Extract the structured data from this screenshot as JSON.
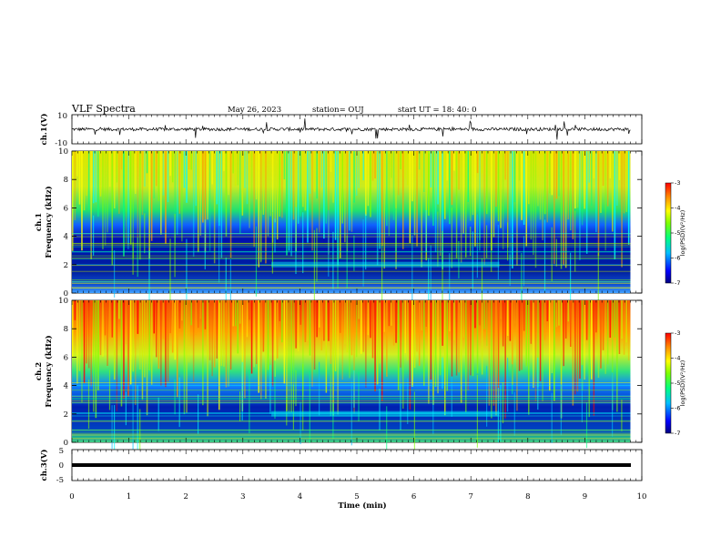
{
  "header": {
    "title": "VLF Spectra",
    "date": "May 26, 2023",
    "station": "station= OUJ",
    "start": "start  UT =   18: 40: 0"
  },
  "chart_data": [
    {
      "type": "line",
      "panel": "ch1-waveform",
      "ylabel": "ch.1(V)",
      "yticks": [
        "10",
        "-10"
      ],
      "ylim": [
        -10,
        10
      ],
      "xlim": [
        0,
        10
      ],
      "baseline": 0,
      "color": "#000000"
    },
    {
      "type": "heatmap",
      "panel": "ch1-spectrogram",
      "ylabel": "ch.1\nFrequency (kHz)",
      "ylabel_line1": "ch.1",
      "ylabel_line2": "Frequency  (kHz)",
      "yticks": [
        "0",
        "2",
        "4",
        "6",
        "8",
        "10"
      ],
      "ylim": [
        0,
        10
      ],
      "xlim": [
        0,
        9.8
      ],
      "colorbar": {
        "label": "log(PSD)(V²/Hz)",
        "ticks": [
          "-3",
          "-4",
          "-5",
          "-6",
          "-7"
        ],
        "range": [
          -7,
          -3
        ]
      }
    },
    {
      "type": "heatmap",
      "panel": "ch2-spectrogram",
      "ylabel": "ch.2\nFrequency (kHz)",
      "ylabel_line1": "ch.2",
      "ylabel_line2": "Frequency  (kHz)",
      "yticks": [
        "0",
        "2",
        "4",
        "6",
        "8",
        "10"
      ],
      "ylim": [
        0,
        10
      ],
      "xlim": [
        0,
        9.8
      ],
      "colorbar": {
        "label": "log(PSD)(V²/Hz)",
        "ticks": [
          "-3",
          "-4",
          "-5",
          "-6",
          "-7"
        ],
        "range": [
          -7,
          -3
        ]
      }
    },
    {
      "type": "line",
      "panel": "ch3-waveform",
      "ylabel": "ch.3(V)",
      "yticks": [
        "5",
        "0",
        "-5"
      ],
      "ylim": [
        -5,
        5
      ],
      "xlim": [
        0,
        9.8
      ],
      "baseline": -0.5,
      "color": "#000000"
    }
  ],
  "xaxis": {
    "label": "Time  (min)",
    "ticks": [
      "0",
      "1",
      "2",
      "3",
      "4",
      "5",
      "6",
      "7",
      "8",
      "9",
      "10"
    ],
    "range": [
      0,
      10
    ]
  },
  "colormap": [
    "#00008b",
    "#0000ff",
    "#00bfff",
    "#00ffff",
    "#00ff80",
    "#7fff00",
    "#ffff00",
    "#ff8c00",
    "#ff0000"
  ]
}
